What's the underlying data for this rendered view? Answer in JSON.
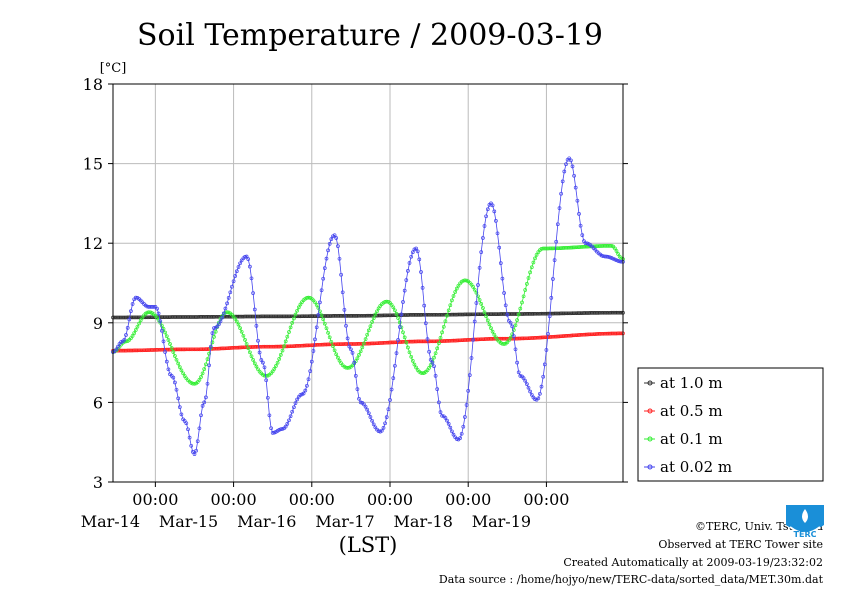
{
  "chart_data": {
    "type": "line",
    "title": "Soil Temperature / 2009-03-19",
    "ylabel": "[°C]",
    "xlabel": "(LST)",
    "ylim": [
      3,
      18
    ],
    "yticks": [
      "3",
      "6",
      "9",
      "12",
      "15",
      "18"
    ],
    "xlim": [
      "2009-03-13T11:00",
      "2009-03-19T23:30"
    ],
    "xticks": [
      {
        "at": "2009-03-14T00:00",
        "time": "00:00",
        "date": "Mar-14"
      },
      {
        "at": "2009-03-15T00:00",
        "time": "00:00",
        "date": "Mar-15"
      },
      {
        "at": "2009-03-16T00:00",
        "time": "00:00",
        "date": "Mar-16"
      },
      {
        "at": "2009-03-17T00:00",
        "time": "00:00",
        "date": "Mar-17"
      },
      {
        "at": "2009-03-18T00:00",
        "time": "00:00",
        "date": "Mar-18"
      },
      {
        "at": "2009-03-19T00:00",
        "time": "00:00",
        "date": "Mar-19"
      }
    ],
    "grid": true,
    "legend_position": "right",
    "series": [
      {
        "name": "at 1.0 m",
        "color": "#303030",
        "x": [
          "2009-03-13T11:00",
          "2009-03-14T11:00",
          "2009-03-15T11:00",
          "2009-03-16T11:00",
          "2009-03-17T11:00",
          "2009-03-18T11:00",
          "2009-03-19T23:30"
        ],
        "y": [
          9.2,
          9.22,
          9.24,
          9.26,
          9.3,
          9.33,
          9.38
        ]
      },
      {
        "name": "at 0.5 m",
        "color": "#ff2020",
        "x": [
          "2009-03-13T11:00",
          "2009-03-14T11:00",
          "2009-03-15T11:00",
          "2009-03-16T11:00",
          "2009-03-17T11:00",
          "2009-03-18T11:00",
          "2009-03-19T23:30"
        ],
        "y": [
          7.95,
          8.0,
          8.1,
          8.2,
          8.3,
          8.4,
          8.6
        ]
      },
      {
        "name": "at 0.1 m",
        "color": "#33ee33",
        "x": [
          "2009-03-13T11:00",
          "2009-03-13T15:00",
          "2009-03-13T22:00",
          "2009-03-14T12:00",
          "2009-03-14T22:00",
          "2009-03-15T10:00",
          "2009-03-15T23:00",
          "2009-03-16T11:00",
          "2009-03-16T23:00",
          "2009-03-17T10:00",
          "2009-03-17T23:00",
          "2009-03-18T11:00",
          "2009-03-18T23:00",
          "2009-03-19T20:00",
          "2009-03-19T23:30"
        ],
        "y": [
          7.9,
          8.3,
          9.4,
          6.7,
          9.4,
          7.0,
          9.95,
          7.3,
          9.8,
          7.1,
          10.6,
          8.2,
          11.8,
          11.9,
          11.4
        ]
      },
      {
        "name": "at 0.02 m",
        "color": "#4444ee",
        "x": [
          "2009-03-13T11:00",
          "2009-03-13T14:00",
          "2009-03-13T18:00",
          "2009-03-13T22:00",
          "2009-03-14T00:00",
          "2009-03-14T05:00",
          "2009-03-14T09:00",
          "2009-03-14T12:00",
          "2009-03-14T15:00",
          "2009-03-14T18:00",
          "2009-03-15T04:00",
          "2009-03-15T09:00",
          "2009-03-15T12:00",
          "2009-03-15T15:00",
          "2009-03-15T21:00",
          "2009-03-16T07:00",
          "2009-03-16T12:00",
          "2009-03-16T15:00",
          "2009-03-16T21:00",
          "2009-03-17T08:00",
          "2009-03-17T13:00",
          "2009-03-17T16:00",
          "2009-03-17T21:00",
          "2009-03-18T07:00",
          "2009-03-18T13:00",
          "2009-03-18T16:00",
          "2009-03-18T21:00",
          "2009-03-19T07:00",
          "2009-03-19T12:00",
          "2009-03-19T18:00",
          "2009-03-19T23:30"
        ],
        "y": [
          7.9,
          8.3,
          9.95,
          9.6,
          9.6,
          7.0,
          5.3,
          4.05,
          6.0,
          8.8,
          11.5,
          7.5,
          4.85,
          5.0,
          6.3,
          12.3,
          8.0,
          6.0,
          4.9,
          11.8,
          7.5,
          5.5,
          4.6,
          13.5,
          9.0,
          7.0,
          6.1,
          15.2,
          12.0,
          11.5,
          11.3
        ]
      }
    ]
  },
  "footer": {
    "copyright": "©TERC, Univ. Tsukuba",
    "observed": "Observed at TERC Tower site",
    "created": "Created Automatically at 2009-03-19/23:32:02",
    "source": "Data source : /home/hojyo/new/TERC-data/sorted_data/MET.30m.dat"
  },
  "logo": {
    "text": "TERC",
    "color": "#1a8fd8"
  }
}
